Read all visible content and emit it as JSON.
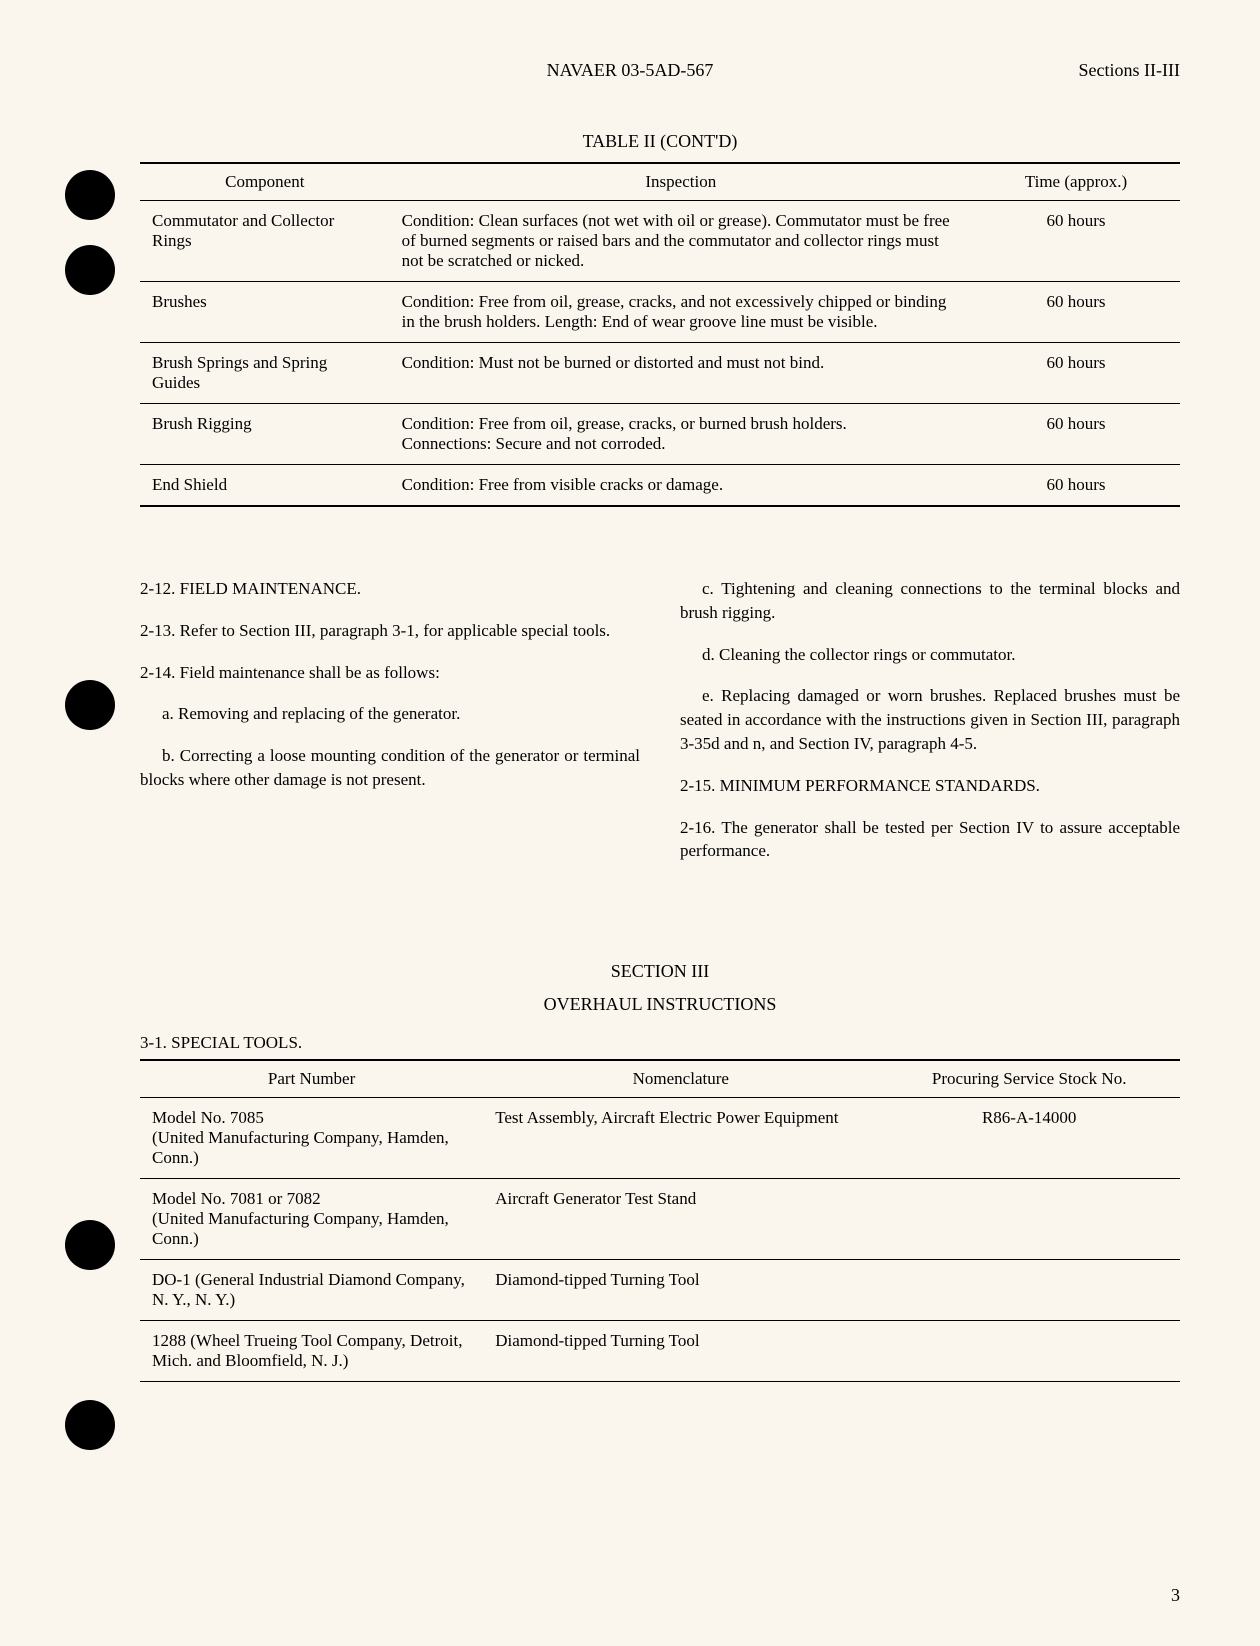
{
  "header": {
    "center": "NAVAER 03-5AD-567",
    "right": "Sections II-III"
  },
  "table1": {
    "title": "TABLE II (CONT'D)",
    "headers": [
      "Component",
      "Inspection",
      "Time (approx.)"
    ],
    "rows": [
      {
        "component": "Commutator and Collector Rings",
        "inspection": "Condition: Clean surfaces (not wet with oil or grease). Commutator must be free of burned segments or raised bars and the commutator and collector rings must not be scratched or nicked.",
        "time": "60 hours"
      },
      {
        "component": "Brushes",
        "inspection": "Condition: Free from oil, grease, cracks, and not excessively chipped or binding in the brush holders. Length: End of wear groove line must be visible.",
        "time": "60 hours"
      },
      {
        "component": "Brush Springs and Spring Guides",
        "inspection": "Condition: Must not be burned or distorted and must not bind.",
        "time": "60 hours"
      },
      {
        "component": "Brush Rigging",
        "inspection": "Condition: Free from oil, grease, cracks, or burned brush holders.\nConnections: Secure and not corroded.",
        "time": "60 hours"
      },
      {
        "component": "End Shield",
        "inspection": "Condition: Free from visible cracks or damage.",
        "time": "60 hours"
      }
    ]
  },
  "body": {
    "left": {
      "p1": "2-12. FIELD MAINTENANCE.",
      "p2": "2-13. Refer to Section III, paragraph 3-1, for applicable special tools.",
      "p3": "2-14. Field maintenance shall be as follows:",
      "p4": "a. Removing and replacing of the generator.",
      "p5": "b. Correcting a loose mounting condition of the generator or terminal blocks where other damage is not present."
    },
    "right": {
      "p1": "c. Tightening and cleaning connections to the terminal blocks and brush rigging.",
      "p2": "d. Cleaning the collector rings or commutator.",
      "p3": "e. Replacing damaged or worn brushes. Replaced brushes must be seated in accordance with the instructions given in Section III, paragraph 3-35d and n, and Section IV, paragraph 4-5.",
      "p4": "2-15. MINIMUM PERFORMANCE STANDARDS.",
      "p5": "2-16. The generator shall be tested per Section IV to assure acceptable performance."
    }
  },
  "section3": {
    "header": "SECTION III",
    "subheader": "OVERHAUL INSTRUCTIONS",
    "subsection": "3-1. SPECIAL TOOLS."
  },
  "table2": {
    "headers": [
      "Part Number",
      "Nomenclature",
      "Procuring Service Stock No."
    ],
    "rows": [
      {
        "part": "Model No. 7085\n(United Manufacturing Company, Hamden, Conn.)",
        "nom": "Test Assembly, Aircraft Electric Power Equipment",
        "stock": "R86-A-14000"
      },
      {
        "part": "Model No. 7081 or 7082\n(United Manufacturing Company, Hamden, Conn.)",
        "nom": "Aircraft Generator Test Stand",
        "stock": ""
      },
      {
        "part": "DO-1 (General Industrial Diamond Company, N. Y., N. Y.)",
        "nom": "Diamond-tipped Turning Tool",
        "stock": ""
      },
      {
        "part": "1288 (Wheel Trueing Tool Company, Detroit, Mich. and Bloomfield, N. J.)",
        "nom": "Diamond-tipped Turning Tool",
        "stock": ""
      }
    ]
  },
  "page_number": "3",
  "colors": {
    "background": "#faf6ed",
    "text": "#000000",
    "border": "#000000"
  }
}
